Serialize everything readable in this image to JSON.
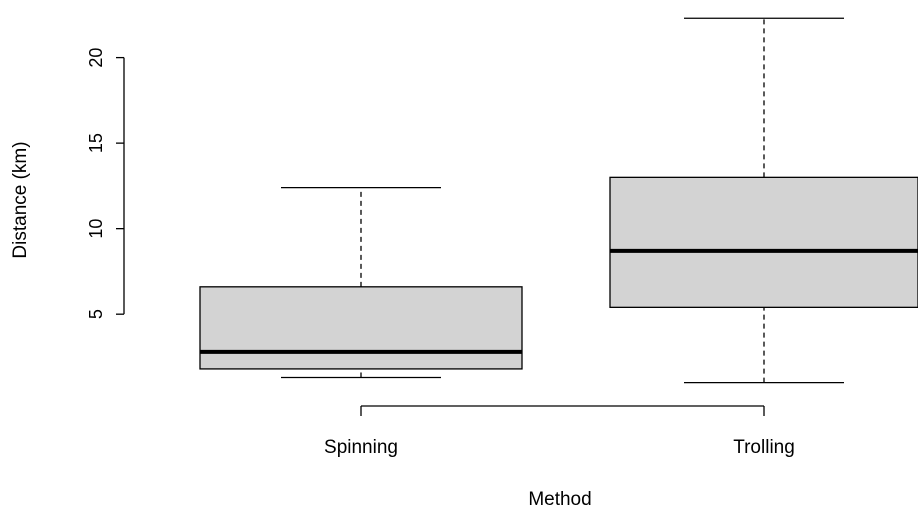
{
  "chart_data": {
    "type": "boxplot",
    "title": "",
    "xlabel": "Method",
    "ylabel": "Distance (km)",
    "categories": [
      "Spinning",
      "Trolling"
    ],
    "boxes": [
      {
        "category": "Spinning",
        "whisker_low": 1.3,
        "q1": 1.8,
        "median": 2.8,
        "q3": 6.6,
        "whisker_high": 12.4
      },
      {
        "category": "Trolling",
        "whisker_low": 1.0,
        "q1": 5.4,
        "median": 8.7,
        "q3": 13.0,
        "whisker_high": 22.3
      }
    ],
    "y_ticks": [
      5,
      10,
      15,
      20
    ],
    "ylim": [
      0.1,
      22.9
    ],
    "grid": false,
    "box_fill": "#d3d3d3",
    "line_color": "#000000"
  }
}
